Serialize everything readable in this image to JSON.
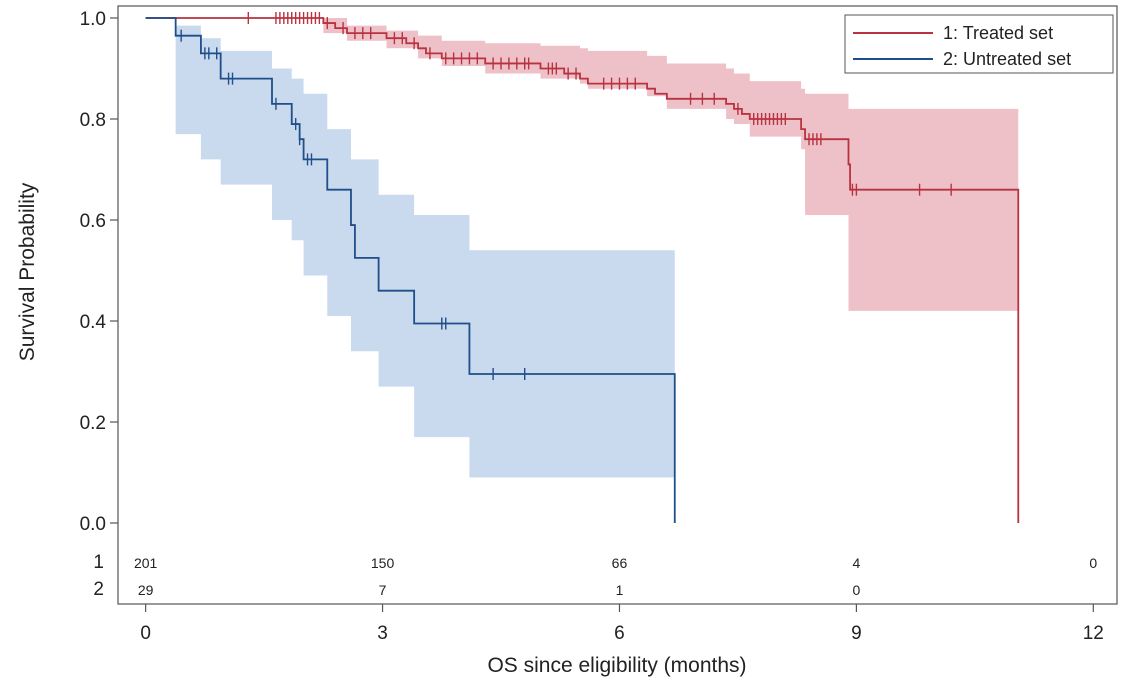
{
  "chart_data": {
    "type": "line",
    "title": "",
    "xlabel": "OS since eligibility (months)",
    "ylabel": "Survival Probability",
    "xlim": [
      -0.35,
      12.3
    ],
    "ylim": [
      0,
      1
    ],
    "xticks": [
      0,
      3,
      6,
      9,
      12
    ],
    "xtick_labels": [
      "0",
      "3",
      "6",
      "9",
      "12"
    ],
    "yticks": [
      0.0,
      0.2,
      0.4,
      0.6,
      0.8,
      1.0
    ],
    "ytick_labels": [
      "0.0",
      "0.2",
      "0.4",
      "0.6",
      "0.8",
      "1.0"
    ],
    "grid": false,
    "legend_position": "top-right",
    "series": [
      {
        "name": "1: Treated set",
        "color": "#b8323f",
        "band_color": "#e8a9b4",
        "steps": [
          [
            0,
            1.0
          ],
          [
            2.25,
            0.99
          ],
          [
            2.4,
            0.98
          ],
          [
            2.55,
            0.97
          ],
          [
            3.05,
            0.96
          ],
          [
            3.3,
            0.95
          ],
          [
            3.45,
            0.94
          ],
          [
            3.55,
            0.93
          ],
          [
            3.75,
            0.92
          ],
          [
            4.3,
            0.91
          ],
          [
            5.0,
            0.9
          ],
          [
            5.3,
            0.89
          ],
          [
            5.5,
            0.88
          ],
          [
            5.6,
            0.87
          ],
          [
            6.35,
            0.86
          ],
          [
            6.45,
            0.85
          ],
          [
            6.6,
            0.84
          ],
          [
            7.35,
            0.83
          ],
          [
            7.45,
            0.82
          ],
          [
            7.55,
            0.81
          ],
          [
            7.65,
            0.8
          ],
          [
            8.3,
            0.78
          ],
          [
            8.35,
            0.76
          ],
          [
            8.9,
            0.71
          ],
          [
            8.92,
            0.66
          ],
          [
            11.05,
            0.0
          ]
        ],
        "end_x": 11.05,
        "ci_band": [
          [
            0,
            1.0,
            1.0
          ],
          [
            2.25,
            0.97,
            1.0
          ],
          [
            2.55,
            0.955,
            0.985
          ],
          [
            3.05,
            0.94,
            0.975
          ],
          [
            3.45,
            0.92,
            0.965
          ],
          [
            3.75,
            0.905,
            0.955
          ],
          [
            4.3,
            0.89,
            0.95
          ],
          [
            5.0,
            0.88,
            0.945
          ],
          [
            5.5,
            0.87,
            0.94
          ],
          [
            5.6,
            0.86,
            0.935
          ],
          [
            6.35,
            0.845,
            0.925
          ],
          [
            6.6,
            0.82,
            0.91
          ],
          [
            7.35,
            0.8,
            0.9
          ],
          [
            7.45,
            0.79,
            0.89
          ],
          [
            7.65,
            0.765,
            0.875
          ],
          [
            8.3,
            0.74,
            0.86
          ],
          [
            8.35,
            0.61,
            0.85
          ],
          [
            8.9,
            0.42,
            0.82
          ],
          [
            11.05,
            0.42,
            0.82
          ]
        ],
        "censor_x": [
          1.3,
          1.65,
          1.7,
          1.75,
          1.8,
          1.85,
          1.9,
          1.95,
          2.0,
          2.05,
          2.1,
          2.15,
          2.2,
          2.3,
          2.5,
          2.65,
          2.75,
          2.85,
          3.15,
          3.25,
          3.4,
          3.6,
          3.8,
          3.9,
          4.0,
          4.1,
          4.2,
          4.4,
          4.5,
          4.6,
          4.7,
          4.8,
          4.85,
          5.1,
          5.15,
          5.2,
          5.35,
          5.45,
          5.8,
          5.9,
          6.0,
          6.1,
          6.2,
          6.9,
          7.05,
          7.2,
          7.5,
          7.7,
          7.75,
          7.8,
          7.85,
          7.9,
          7.95,
          8.0,
          8.05,
          8.1,
          8.4,
          8.45,
          8.5,
          8.55,
          8.95,
          9.0,
          9.8,
          10.2
        ]
      },
      {
        "name": "2: Untreated set",
        "color": "#1f4e89",
        "band_color": "#b4cbe8",
        "steps": [
          [
            0,
            1.0
          ],
          [
            0.38,
            0.965
          ],
          [
            0.7,
            0.93
          ],
          [
            0.95,
            0.88
          ],
          [
            1.6,
            0.83
          ],
          [
            1.85,
            0.79
          ],
          [
            1.95,
            0.76
          ],
          [
            2.0,
            0.72
          ],
          [
            2.3,
            0.66
          ],
          [
            2.6,
            0.59
          ],
          [
            2.65,
            0.525
          ],
          [
            2.95,
            0.46
          ],
          [
            3.4,
            0.395
          ],
          [
            4.1,
            0.295
          ],
          [
            6.7,
            0.0
          ]
        ],
        "end_x": 6.7,
        "ci_band": [
          [
            0,
            1.0,
            1.0
          ],
          [
            0.38,
            0.77,
            0.985
          ],
          [
            0.7,
            0.72,
            0.96
          ],
          [
            0.95,
            0.67,
            0.935
          ],
          [
            1.6,
            0.6,
            0.9
          ],
          [
            1.85,
            0.56,
            0.88
          ],
          [
            2.0,
            0.49,
            0.85
          ],
          [
            2.3,
            0.41,
            0.78
          ],
          [
            2.6,
            0.34,
            0.72
          ],
          [
            2.95,
            0.27,
            0.65
          ],
          [
            3.4,
            0.17,
            0.61
          ],
          [
            4.1,
            0.09,
            0.54
          ],
          [
            6.7,
            0.09,
            0.54
          ]
        ],
        "censor_x": [
          0.45,
          0.75,
          0.8,
          0.9,
          1.05,
          1.1,
          1.65,
          1.9,
          1.95,
          2.05,
          2.1,
          3.75,
          3.8,
          4.4,
          4.8
        ]
      }
    ],
    "at_risk": {
      "rows": [
        {
          "label": "1",
          "values": [
            "201",
            "150",
            "66",
            "4",
            "0"
          ]
        },
        {
          "label": "2",
          "values": [
            "29",
            "7",
            "1",
            "0"
          ]
        }
      ],
      "x": [
        0,
        3,
        6,
        9,
        12
      ]
    }
  }
}
